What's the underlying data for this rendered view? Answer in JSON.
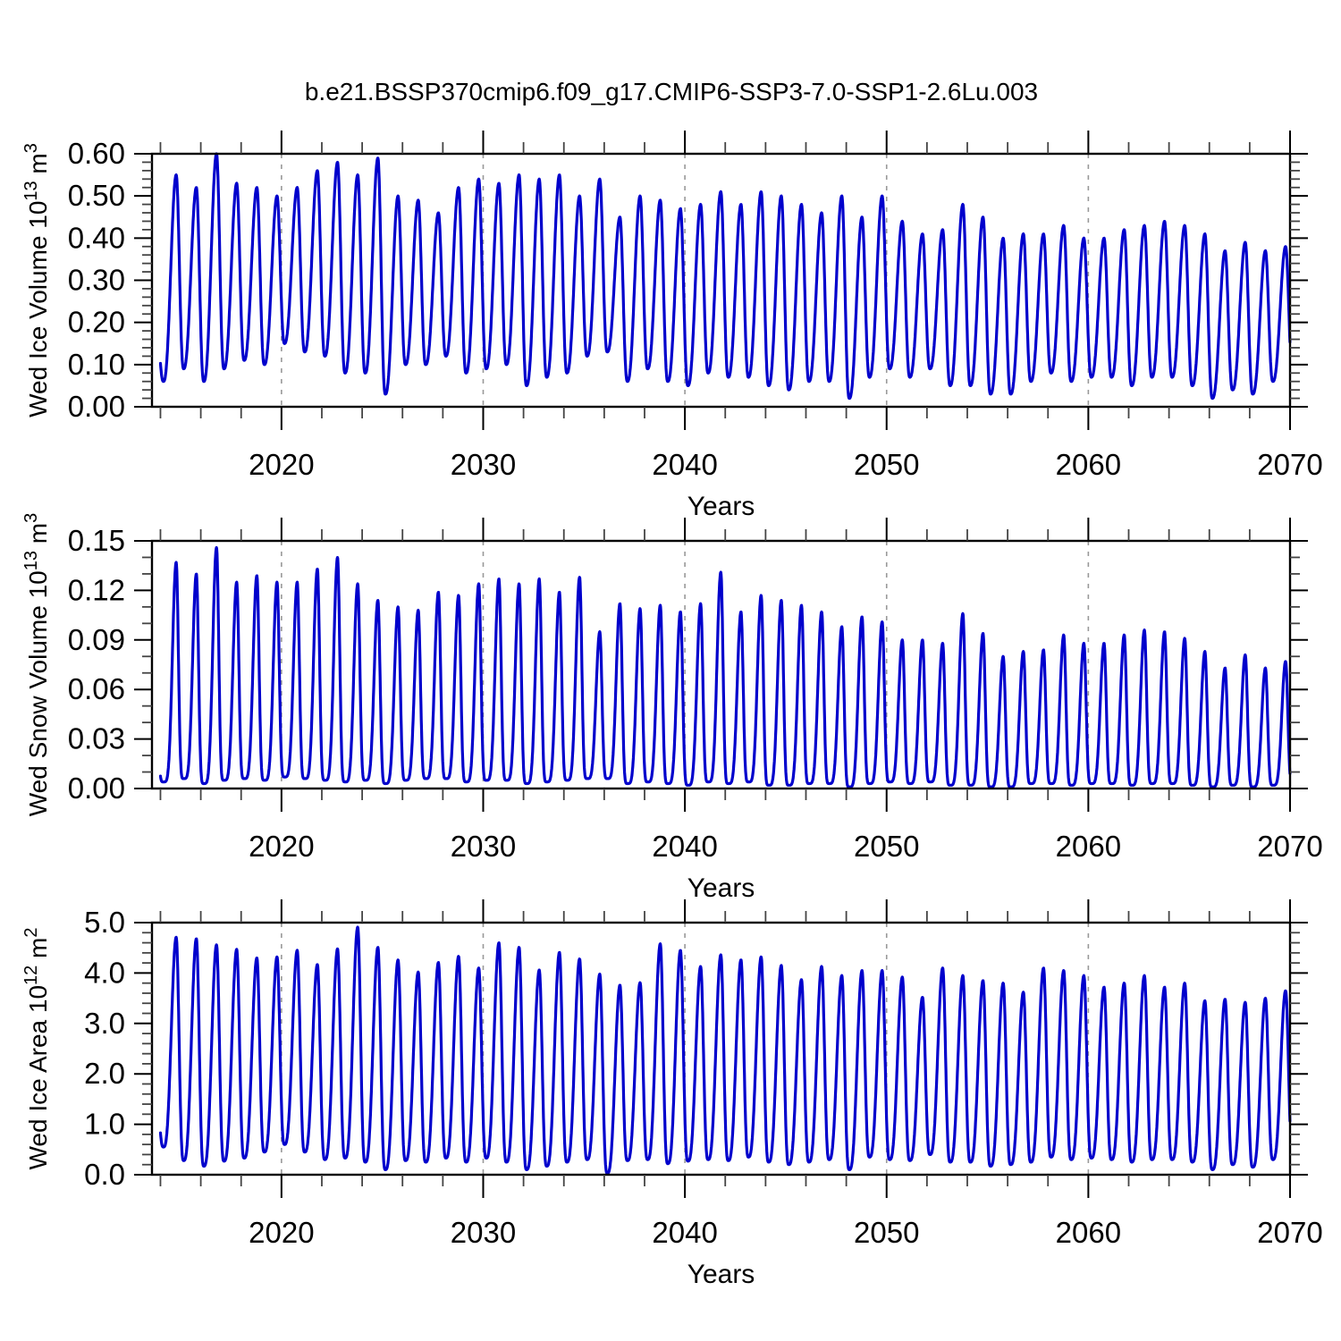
{
  "title": "b.e21.BSSP370cmip6.f09_g17.CMIP6-SSP3-7.0-SSP1-2.6Lu.003",
  "figure": {
    "background": "#ffffff",
    "line_color": "#0000cc",
    "axis_color": "#000000",
    "minor_tick_color": "#444444",
    "grid_color": "#999999",
    "text_color": "#000000"
  },
  "chart_data": [
    {
      "type": "line",
      "panel": "wed-ice-volume",
      "ylabel": "Wed Ice Volume 10¹³ m³",
      "ylabel_parts": [
        {
          "t": "Wed Ice Volume 10"
        },
        {
          "t": "13",
          "sup": true
        },
        {
          "t": " m"
        },
        {
          "t": "3",
          "sup": true
        }
      ],
      "xlabel": "Years",
      "xlim": [
        2013.58,
        2070
      ],
      "ylim": [
        0,
        0.6
      ],
      "xticks": {
        "major": [
          2020,
          2030,
          2040,
          2050,
          2060,
          2070
        ],
        "labels": [
          "2020",
          "2030",
          "2040",
          "2050",
          "2060",
          "2070"
        ],
        "minor_start": 2014,
        "minor_step": 2
      },
      "yticks": {
        "major": [
          0,
          0.1,
          0.2,
          0.3,
          0.4,
          0.5,
          0.6
        ],
        "labels": [
          "0.00",
          "0.10",
          "0.20",
          "0.30",
          "0.40",
          "0.50",
          "0.60"
        ],
        "minor_step": 0.02
      },
      "gridlines_x": [
        2020,
        2030,
        2040,
        2050,
        2060
      ],
      "grid_dashed": true,
      "legend": "none",
      "seasonality": {
        "min_phase": 0.15,
        "max_phase": 0.78,
        "peak_sharpness": 1.25,
        "series_start": 2014.0,
        "series_end": 2070.0,
        "cycle": "annual"
      },
      "years": [
        2014,
        2015,
        2016,
        2017,
        2018,
        2019,
        2020,
        2021,
        2022,
        2023,
        2024,
        2025,
        2026,
        2027,
        2028,
        2029,
        2030,
        2031,
        2032,
        2033,
        2034,
        2035,
        2036,
        2037,
        2038,
        2039,
        2040,
        2041,
        2042,
        2043,
        2044,
        2045,
        2046,
        2047,
        2048,
        2049,
        2050,
        2051,
        2052,
        2053,
        2054,
        2055,
        2056,
        2057,
        2058,
        2059,
        2060,
        2061,
        2062,
        2063,
        2064,
        2065,
        2066,
        2067,
        2068,
        2069
      ],
      "annual_max": [
        0.55,
        0.52,
        0.6,
        0.53,
        0.52,
        0.5,
        0.52,
        0.56,
        0.58,
        0.55,
        0.59,
        0.5,
        0.49,
        0.46,
        0.52,
        0.54,
        0.53,
        0.55,
        0.54,
        0.55,
        0.5,
        0.54,
        0.45,
        0.5,
        0.49,
        0.47,
        0.48,
        0.51,
        0.48,
        0.51,
        0.5,
        0.48,
        0.46,
        0.5,
        0.45,
        0.5,
        0.44,
        0.41,
        0.42,
        0.48,
        0.45,
        0.4,
        0.41,
        0.41,
        0.43,
        0.4,
        0.4,
        0.42,
        0.43,
        0.44,
        0.43,
        0.41,
        0.37,
        0.39,
        0.37,
        0.38
      ],
      "annual_min": [
        0.06,
        0.09,
        0.06,
        0.09,
        0.11,
        0.1,
        0.15,
        0.13,
        0.12,
        0.08,
        0.08,
        0.03,
        0.1,
        0.1,
        0.12,
        0.08,
        0.09,
        0.1,
        0.05,
        0.07,
        0.08,
        0.12,
        0.13,
        0.06,
        0.09,
        0.06,
        0.05,
        0.08,
        0.07,
        0.07,
        0.05,
        0.04,
        0.06,
        0.06,
        0.02,
        0.07,
        0.09,
        0.07,
        0.09,
        0.05,
        0.05,
        0.03,
        0.03,
        0.06,
        0.08,
        0.06,
        0.07,
        0.07,
        0.05,
        0.07,
        0.07,
        0.05,
        0.02,
        0.04,
        0.03,
        0.06
      ]
    },
    {
      "type": "line",
      "panel": "wed-snow-volume",
      "ylabel": "Wed Snow Volume 10¹³ m³",
      "ylabel_parts": [
        {
          "t": "Wed Snow Volume 10"
        },
        {
          "t": "13",
          "sup": true
        },
        {
          "t": " m"
        },
        {
          "t": "3",
          "sup": true
        }
      ],
      "xlabel": "Years",
      "xlim": [
        2013.58,
        2070
      ],
      "ylim": [
        0,
        0.15
      ],
      "xticks": {
        "major": [
          2020,
          2030,
          2040,
          2050,
          2060,
          2070
        ],
        "labels": [
          "2020",
          "2030",
          "2040",
          "2050",
          "2060",
          "2070"
        ],
        "minor_start": 2014,
        "minor_step": 2
      },
      "yticks": {
        "major": [
          0,
          0.03,
          0.06,
          0.09,
          0.12,
          0.15
        ],
        "labels": [
          "0.00",
          "0.03",
          "0.06",
          "0.09",
          "0.12",
          "0.15"
        ],
        "minor_step": 0.01
      },
      "gridlines_x": [
        2020,
        2030,
        2040,
        2050,
        2060
      ],
      "grid_dashed": true,
      "legend": "none",
      "seasonality": {
        "min_phase": 0.15,
        "max_phase": 0.78,
        "peak_sharpness": 2.4,
        "series_start": 2014.0,
        "series_end": 2070.0,
        "cycle": "annual"
      },
      "years": [
        2014,
        2015,
        2016,
        2017,
        2018,
        2019,
        2020,
        2021,
        2022,
        2023,
        2024,
        2025,
        2026,
        2027,
        2028,
        2029,
        2030,
        2031,
        2032,
        2033,
        2034,
        2035,
        2036,
        2037,
        2038,
        2039,
        2040,
        2041,
        2042,
        2043,
        2044,
        2045,
        2046,
        2047,
        2048,
        2049,
        2050,
        2051,
        2052,
        2053,
        2054,
        2055,
        2056,
        2057,
        2058,
        2059,
        2060,
        2061,
        2062,
        2063,
        2064,
        2065,
        2066,
        2067,
        2068,
        2069
      ],
      "annual_max": [
        0.137,
        0.13,
        0.146,
        0.125,
        0.129,
        0.125,
        0.125,
        0.133,
        0.14,
        0.124,
        0.114,
        0.11,
        0.108,
        0.119,
        0.117,
        0.124,
        0.127,
        0.124,
        0.127,
        0.119,
        0.128,
        0.095,
        0.112,
        0.109,
        0.111,
        0.107,
        0.112,
        0.131,
        0.107,
        0.117,
        0.114,
        0.111,
        0.107,
        0.098,
        0.104,
        0.101,
        0.09,
        0.09,
        0.088,
        0.106,
        0.094,
        0.08,
        0.083,
        0.084,
        0.093,
        0.088,
        0.088,
        0.093,
        0.096,
        0.095,
        0.091,
        0.083,
        0.073,
        0.081,
        0.073,
        0.077
      ],
      "annual_min": [
        0.004,
        0.006,
        0.003,
        0.005,
        0.006,
        0.005,
        0.007,
        0.006,
        0.005,
        0.004,
        0.005,
        0.003,
        0.005,
        0.006,
        0.006,
        0.004,
        0.005,
        0.005,
        0.003,
        0.004,
        0.005,
        0.006,
        0.006,
        0.003,
        0.004,
        0.003,
        0.002,
        0.004,
        0.003,
        0.004,
        0.002,
        0.002,
        0.003,
        0.003,
        0.001,
        0.003,
        0.004,
        0.003,
        0.004,
        0.002,
        0.002,
        0.001,
        0.001,
        0.003,
        0.003,
        0.002,
        0.003,
        0.003,
        0.002,
        0.003,
        0.003,
        0.002,
        0.001,
        0.002,
        0.001,
        0.002
      ]
    },
    {
      "type": "line",
      "panel": "wed-ice-area",
      "ylabel": "Wed Ice Area 10¹² m²",
      "ylabel_parts": [
        {
          "t": "Wed Ice Area 10"
        },
        {
          "t": "12",
          "sup": true
        },
        {
          "t": " m"
        },
        {
          "t": "2",
          "sup": true
        }
      ],
      "xlabel": "Years",
      "xlim": [
        2013.58,
        2070
      ],
      "ylim": [
        0,
        5.0
      ],
      "xticks": {
        "major": [
          2020,
          2030,
          2040,
          2050,
          2060,
          2070
        ],
        "labels": [
          "2020",
          "2030",
          "2040",
          "2050",
          "2060",
          "2070"
        ],
        "minor_start": 2014,
        "minor_step": 2
      },
      "yticks": {
        "major": [
          0,
          1,
          2,
          3,
          4,
          5
        ],
        "labels": [
          "0.0",
          "1.0",
          "2.0",
          "3.0",
          "4.0",
          "5.0"
        ],
        "minor_step": 0.2
      },
      "gridlines_x": [
        2020,
        2030,
        2040,
        2050,
        2060
      ],
      "grid_dashed": true,
      "legend": "none",
      "seasonality": {
        "min_phase": 0.15,
        "max_phase": 0.78,
        "peak_sharpness": 1.5,
        "series_start": 2014.0,
        "series_end": 2070.0,
        "cycle": "annual"
      },
      "years": [
        2014,
        2015,
        2016,
        2017,
        2018,
        2019,
        2020,
        2021,
        2022,
        2023,
        2024,
        2025,
        2026,
        2027,
        2028,
        2029,
        2030,
        2031,
        2032,
        2033,
        2034,
        2035,
        2036,
        2037,
        2038,
        2039,
        2040,
        2041,
        2042,
        2043,
        2044,
        2045,
        2046,
        2047,
        2048,
        2049,
        2050,
        2051,
        2052,
        2053,
        2054,
        2055,
        2056,
        2057,
        2058,
        2059,
        2060,
        2061,
        2062,
        2063,
        2064,
        2065,
        2066,
        2067,
        2068,
        2069
      ],
      "annual_max": [
        4.71,
        4.68,
        4.56,
        4.47,
        4.3,
        4.32,
        4.45,
        4.17,
        4.48,
        4.91,
        4.51,
        4.26,
        4.02,
        4.21,
        4.33,
        4.1,
        4.6,
        4.51,
        4.06,
        4.41,
        4.28,
        3.98,
        3.76,
        3.81,
        4.58,
        4.45,
        4.13,
        4.36,
        4.26,
        4.32,
        4.15,
        3.87,
        4.13,
        3.95,
        4.05,
        4.05,
        3.92,
        3.52,
        4.1,
        3.95,
        3.85,
        3.8,
        3.62,
        4.1,
        4.05,
        3.95,
        3.72,
        3.8,
        3.95,
        3.72,
        3.8,
        3.45,
        3.48,
        3.42,
        3.5,
        3.65
      ],
      "annual_min": [
        0.55,
        0.28,
        0.17,
        0.27,
        0.33,
        0.45,
        0.6,
        0.45,
        0.3,
        0.33,
        0.25,
        0.1,
        0.28,
        0.25,
        0.33,
        0.25,
        0.33,
        0.25,
        0.1,
        0.17,
        0.25,
        0.3,
        0.03,
        0.28,
        0.3,
        0.22,
        0.27,
        0.3,
        0.28,
        0.35,
        0.25,
        0.2,
        0.25,
        0.3,
        0.1,
        0.35,
        0.3,
        0.28,
        0.4,
        0.25,
        0.25,
        0.17,
        0.2,
        0.25,
        0.35,
        0.3,
        0.33,
        0.3,
        0.25,
        0.3,
        0.3,
        0.25,
        0.1,
        0.2,
        0.15,
        0.3
      ]
    }
  ]
}
